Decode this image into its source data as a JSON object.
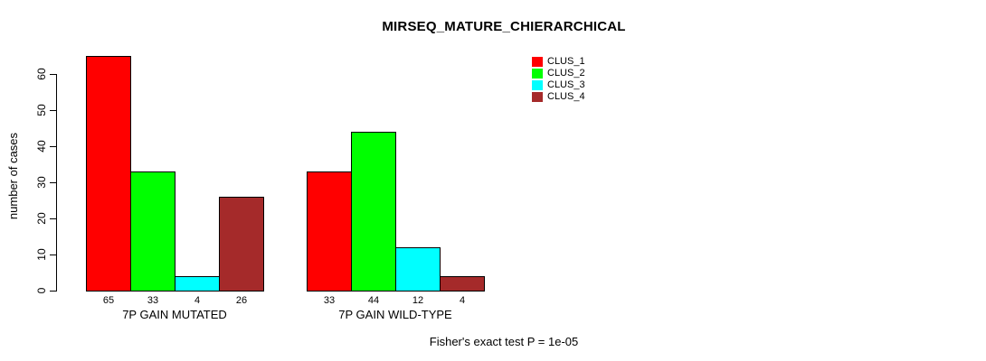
{
  "title": "MIRSEQ_MATURE_CHIERARCHICAL",
  "chart_data": {
    "type": "bar",
    "title": "MIRSEQ_MATURE_CHIERARCHICAL",
    "xlabel": "",
    "ylabel": "number of cases",
    "ylim": [
      0,
      60
    ],
    "yticks": [
      0,
      10,
      20,
      30,
      40,
      50,
      60
    ],
    "grid": false,
    "legend_position": "top-right-inside",
    "categories": [
      "7P GAIN MUTATED",
      "7P GAIN WILD-TYPE"
    ],
    "series": [
      {
        "name": "CLUS_1",
        "color": "#ff0000",
        "values": [
          65,
          33
        ]
      },
      {
        "name": "CLUS_2",
        "color": "#00ff00",
        "values": [
          33,
          44
        ]
      },
      {
        "name": "CLUS_3",
        "color": "#00ffff",
        "values": [
          4,
          12
        ]
      },
      {
        "name": "CLUS_4",
        "color": "#a52a2a",
        "values": [
          26,
          4
        ]
      }
    ],
    "bar_value_labels": [
      [
        65,
        33,
        4,
        26
      ],
      [
        33,
        44,
        12,
        4
      ]
    ],
    "annotation": "Fisher's exact test P = 1e-05"
  },
  "colors": {
    "background": "#ffffff",
    "axis": "#000000",
    "bar_border": "#000000"
  }
}
